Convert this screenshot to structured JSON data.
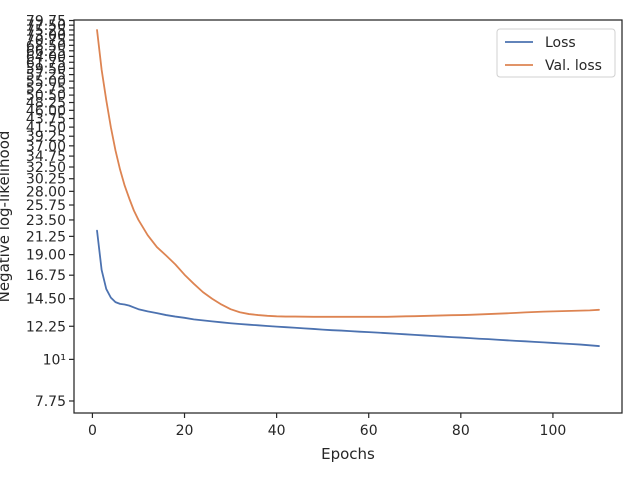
{
  "chart_data": {
    "type": "line",
    "xlabel": "Epochs",
    "ylabel": "Negative log-likelihood",
    "y_scale": "log",
    "xlim": [
      -4,
      115
    ],
    "ylim": [
      7.2,
      80
    ],
    "x_ticks": [
      0,
      20,
      40,
      60,
      80,
      100
    ],
    "y_ticks": [
      {
        "value": 7.75,
        "label": "7.75"
      },
      {
        "value": 10,
        "label": "10¹"
      },
      {
        "value": 12.25,
        "label": "12.25"
      },
      {
        "value": 14.5,
        "label": "14.50"
      },
      {
        "value": 16.75,
        "label": "16.75"
      },
      {
        "value": 19.0,
        "label": "19.00"
      },
      {
        "value": 21.25,
        "label": "21.25"
      },
      {
        "value": 23.5,
        "label": "23.50"
      },
      {
        "value": 25.75,
        "label": "25.75"
      },
      {
        "value": 28.0,
        "label": "28.00"
      },
      {
        "value": 30.25,
        "label": "30.25"
      },
      {
        "value": 32.5,
        "label": "32.50"
      },
      {
        "value": 34.75,
        "label": "34.75"
      },
      {
        "value": 37.0,
        "label": "37.00"
      },
      {
        "value": 39.25,
        "label": "39.25"
      },
      {
        "value": 41.5,
        "label": "41.50"
      },
      {
        "value": 43.75,
        "label": "43.75"
      },
      {
        "value": 46.0,
        "label": "46.00"
      },
      {
        "value": 48.25,
        "label": "48.25"
      },
      {
        "value": 50.5,
        "label": "50.50"
      },
      {
        "value": 52.75,
        "label": "52.75"
      },
      {
        "value": 55.0,
        "label": "55.00"
      },
      {
        "value": 57.25,
        "label": "57.25"
      },
      {
        "value": 59.5,
        "label": "59.50"
      },
      {
        "value": 61.75,
        "label": "61.75"
      },
      {
        "value": 64.0,
        "label": "64.00"
      },
      {
        "value": 66.25,
        "label": "66.25"
      },
      {
        "value": 68.5,
        "label": "68.50"
      },
      {
        "value": 70.75,
        "label": "70.75"
      },
      {
        "value": 73.0,
        "label": "73.00"
      },
      {
        "value": 75.25,
        "label": "75.25"
      },
      {
        "value": 77.5,
        "label": "77.50"
      },
      {
        "value": 79.75,
        "label": "79.75"
      }
    ],
    "grid": false,
    "legend": "top-right",
    "series": [
      {
        "name": "Loss",
        "color": "#4c72b0",
        "x": [
          1,
          2,
          3,
          4,
          5,
          6,
          7,
          8,
          9,
          10,
          12,
          14,
          16,
          18,
          20,
          22,
          24,
          26,
          28,
          30,
          32,
          34,
          36,
          38,
          40,
          42,
          44,
          46,
          48,
          50,
          52,
          54,
          56,
          58,
          60,
          62,
          64,
          66,
          68,
          70,
          72,
          74,
          76,
          78,
          80,
          82,
          84,
          86,
          88,
          90,
          92,
          94,
          96,
          98,
          100,
          102,
          104,
          106,
          108,
          110
        ],
        "values": [
          22.0,
          17.3,
          15.4,
          14.6,
          14.2,
          14.05,
          14.0,
          13.9,
          13.75,
          13.6,
          13.42,
          13.28,
          13.12,
          13.0,
          12.9,
          12.78,
          12.7,
          12.62,
          12.55,
          12.48,
          12.42,
          12.37,
          12.32,
          12.27,
          12.22,
          12.18,
          12.14,
          12.09,
          12.05,
          12.0,
          11.96,
          11.93,
          11.89,
          11.85,
          11.82,
          11.78,
          11.74,
          11.7,
          11.66,
          11.62,
          11.58,
          11.54,
          11.5,
          11.46,
          11.43,
          11.39,
          11.35,
          11.32,
          11.28,
          11.24,
          11.2,
          11.17,
          11.13,
          11.1,
          11.06,
          11.02,
          10.99,
          10.95,
          10.9,
          10.85
        ]
      },
      {
        "name": "Val. loss",
        "color": "#dd8452",
        "x": [
          1,
          2,
          3,
          4,
          5,
          6,
          7,
          8,
          9,
          10,
          12,
          14,
          16,
          18,
          20,
          22,
          24,
          26,
          28,
          30,
          32,
          34,
          36,
          38,
          40,
          42,
          44,
          46,
          48,
          50,
          52,
          54,
          56,
          58,
          60,
          62,
          64,
          66,
          68,
          70,
          72,
          74,
          76,
          78,
          80,
          82,
          84,
          86,
          88,
          90,
          92,
          94,
          96,
          98,
          100,
          102,
          104,
          106,
          108,
          110
        ],
        "values": [
          75.25,
          59.0,
          49.0,
          41.5,
          36.0,
          32.0,
          29.0,
          26.8,
          24.9,
          23.5,
          21.4,
          19.9,
          18.9,
          17.9,
          16.8,
          15.9,
          15.1,
          14.5,
          14.0,
          13.6,
          13.35,
          13.2,
          13.12,
          13.06,
          13.02,
          13.0,
          13.0,
          12.99,
          12.98,
          12.98,
          12.98,
          12.98,
          12.98,
          12.98,
          12.98,
          12.98,
          12.98,
          13.0,
          13.02,
          13.03,
          13.05,
          13.07,
          13.09,
          13.11,
          13.12,
          13.14,
          13.17,
          13.2,
          13.23,
          13.26,
          13.3,
          13.34,
          13.37,
          13.4,
          13.42,
          13.44,
          13.46,
          13.48,
          13.5,
          13.55
        ]
      }
    ]
  }
}
